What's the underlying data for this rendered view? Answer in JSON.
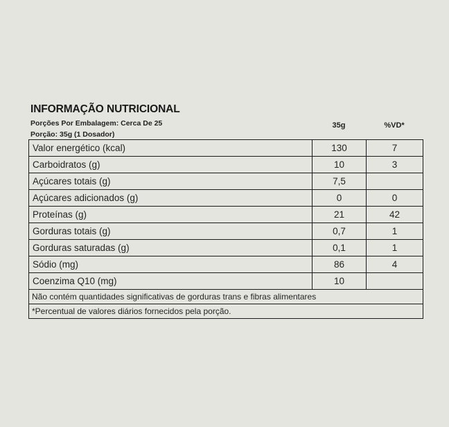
{
  "panel": {
    "title": "INFORMAÇÃO NUTRICIONAL",
    "servings_per_package": "Porções Por Embalagem: Cerca De 25",
    "serving_size": "Porção: 35g (1 Dosador)",
    "columns": {
      "amount": "35g",
      "daily_value": "%VD*"
    },
    "rows": [
      {
        "label": "Valor energético (kcal)",
        "amount": "130",
        "vd": "7"
      },
      {
        "label": "Carboidratos (g)",
        "amount": "10",
        "vd": "3"
      },
      {
        "label": "Açúcares totais (g)",
        "amount": "7,5",
        "vd": ""
      },
      {
        "label": "Açúcares adicionados (g)",
        "amount": "0",
        "vd": "0"
      },
      {
        "label": "Proteínas (g)",
        "amount": "21",
        "vd": "42"
      },
      {
        "label": "Gorduras totais (g)",
        "amount": "0,7",
        "vd": "1"
      },
      {
        "label": "Gorduras saturadas (g)",
        "amount": "0,1",
        "vd": "1"
      },
      {
        "label": "Sódio (mg)",
        "amount": "86",
        "vd": "4"
      },
      {
        "label": "Coenzima Q10 (mg)",
        "amount": "10",
        "vd": ""
      }
    ],
    "notes": [
      "Não contém quantidades significativas de gorduras trans e fibras alimentares",
      "*Percentual de valores diários fornecidos pela porção."
    ],
    "colors": {
      "background": "#e4e5de",
      "border": "#1b1b1b",
      "text": "#242424"
    }
  }
}
